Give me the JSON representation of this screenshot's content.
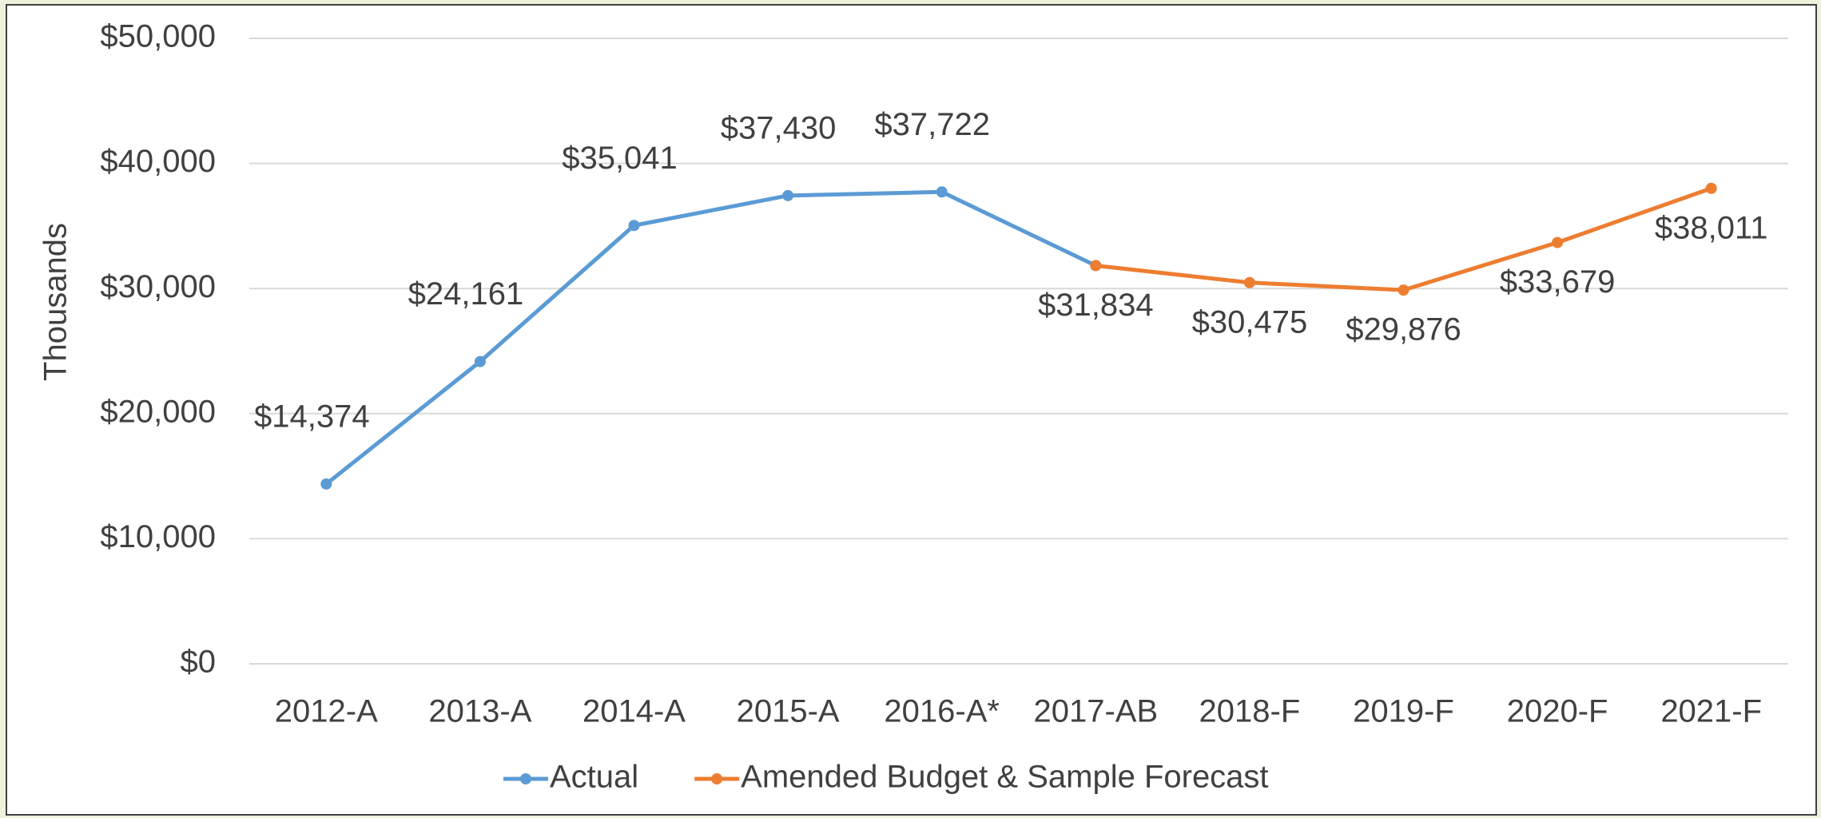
{
  "chart_data": {
    "type": "line",
    "y_axis_label": "Thousands",
    "categories": [
      "2012-A",
      "2013-A",
      "2014-A",
      "2015-A",
      "2016-A*",
      "2017-AB",
      "2018-F",
      "2019-F",
      "2020-F",
      "2021-F"
    ],
    "series": [
      {
        "name": "Actual",
        "color": "#5b9bd5",
        "values": [
          14374,
          24161,
          35041,
          37430,
          37722,
          31834,
          null,
          null,
          null,
          null
        ],
        "value_labels": [
          "$14,374",
          "$24,161",
          "$35,041",
          "$37,430",
          "$37,722",
          null,
          null,
          null,
          null,
          null
        ]
      },
      {
        "name": "Amended Budget & Sample Forecast",
        "color": "#ed7d31",
        "values": [
          null,
          null,
          null,
          null,
          null,
          31834,
          30475,
          29876,
          33679,
          38011
        ],
        "value_labels": [
          null,
          null,
          null,
          null,
          null,
          "$31,834",
          "$30,475",
          "$29,876",
          "$33,679",
          "$38,011"
        ]
      }
    ],
    "ylim": [
      0,
      50000
    ],
    "yticks": [
      {
        "value": 0,
        "label": "$0"
      },
      {
        "value": 10000,
        "label": "$10,000"
      },
      {
        "value": 20000,
        "label": "$20,000"
      },
      {
        "value": 30000,
        "label": "$30,000"
      },
      {
        "value": 40000,
        "label": "$40,000"
      },
      {
        "value": 50000,
        "label": "$50,000"
      }
    ],
    "grid": true,
    "legend": "bottom"
  }
}
